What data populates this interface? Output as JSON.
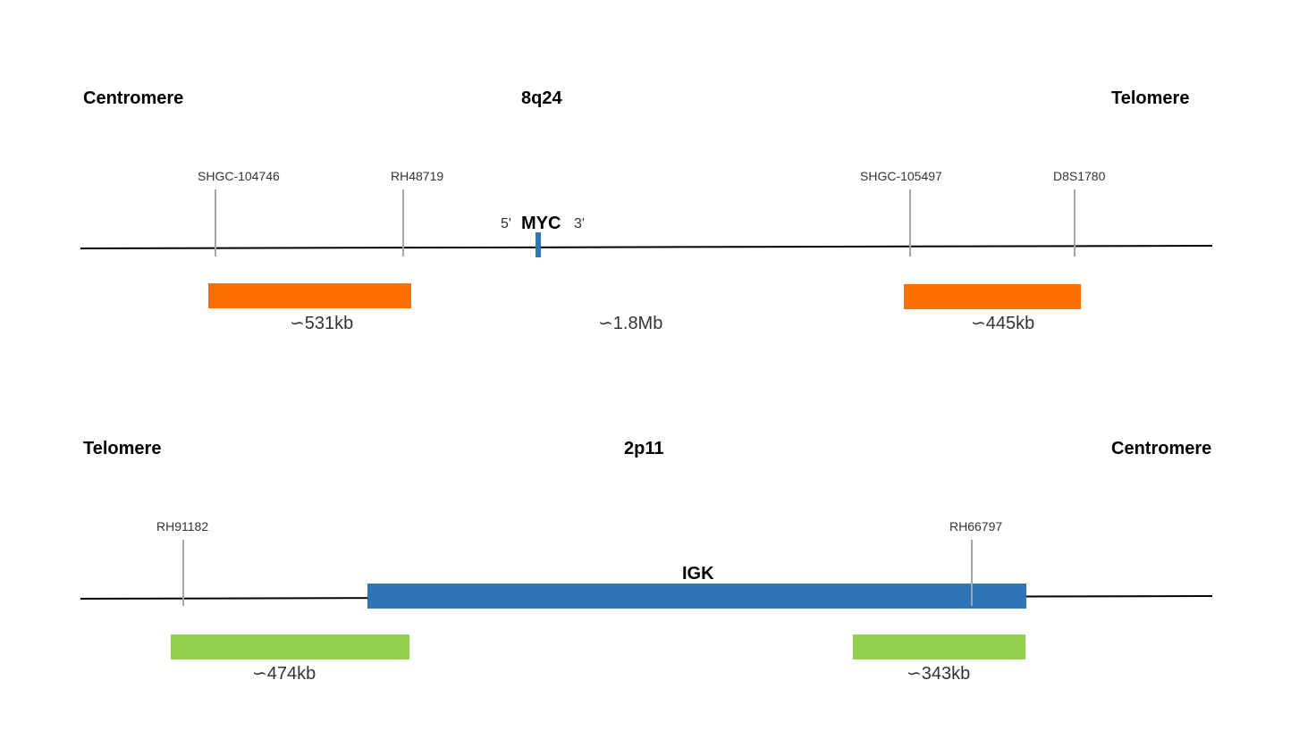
{
  "panels": [
    {
      "left_end": "Centromere",
      "region": "8q24",
      "right_end": "Telomere",
      "markers": [
        "SHGC-104746",
        "RH48719",
        "SHGC-105497",
        "D8S1780"
      ],
      "gene": {
        "name": "MYC",
        "five_prime": "5'",
        "three_prime": "3'",
        "color": "#2E75B6"
      },
      "probes": [
        {
          "size": "∽531kb",
          "color": "#FF6F00"
        },
        {
          "size": "∽445kb",
          "color": "#FF6F00"
        }
      ],
      "gap_size": "∽1.8Mb"
    },
    {
      "left_end": "Telomere",
      "region": "2p11",
      "right_end": "Centromere",
      "markers": [
        "RH91182",
        "RH66797"
      ],
      "gene": {
        "name": "IGK",
        "color": "#2E75B6"
      },
      "probes": [
        {
          "size": "∽474kb",
          "color": "#92D050"
        },
        {
          "size": "∽343kb",
          "color": "#92D050"
        }
      ]
    }
  ]
}
